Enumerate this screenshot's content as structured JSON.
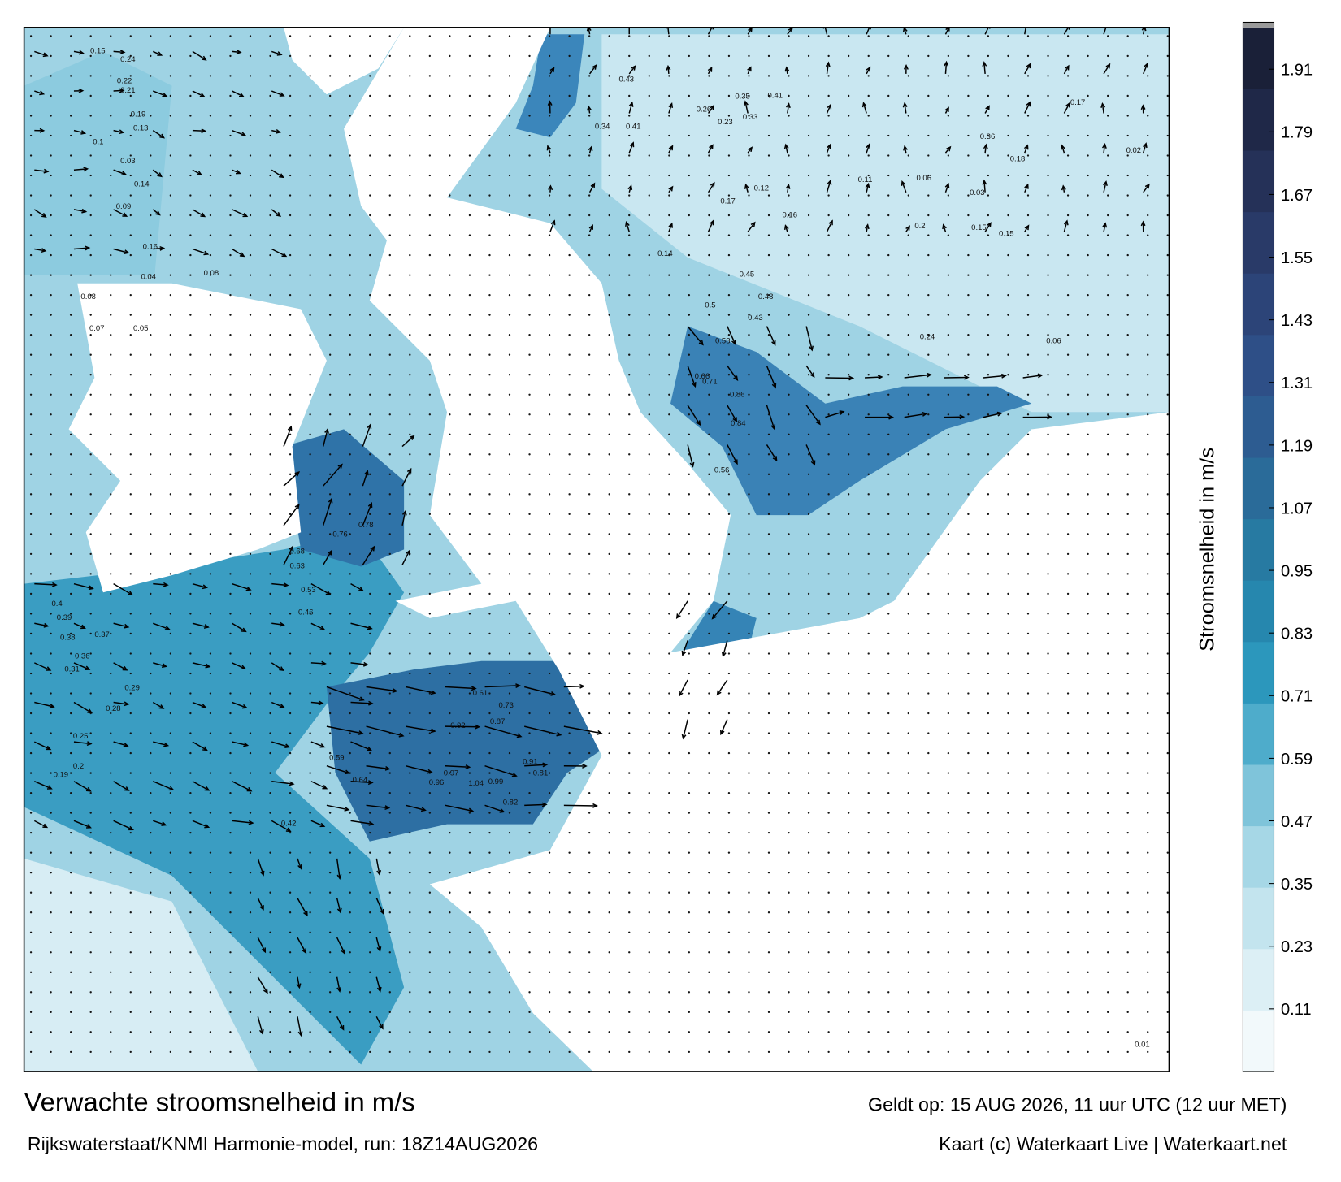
{
  "title": "Verwachte stroomsnelheid in m/s",
  "subtitle": "Rijkswaterstaat/KNMI Harmonie-model, run: 18Z14AUG2026",
  "valid_time": "Geldt op: 15 AUG 2026, 11 uur UTC (12 uur MET)",
  "credit": "Kaart (c) Waterkaart Live | Waterkaart.net",
  "colorbar": {
    "label": "Stroomsnelheid in m/s",
    "clim": [
      -0.01,
      1.99
    ],
    "ticks": [
      0.11,
      0.23,
      0.35,
      0.47,
      0.59,
      0.71,
      0.83,
      0.95,
      1.07,
      1.19,
      1.31,
      1.43,
      1.55,
      1.67,
      1.79,
      1.91
    ],
    "colors": [
      "#f2f9fb",
      "#dceff5",
      "#c3e4ee",
      "#a6d7e6",
      "#7fc4da",
      "#4eaccb",
      "#2c97bc",
      "#2687ae",
      "#277aa2",
      "#2a6b99",
      "#2d5c91",
      "#2e4f87",
      "#2c4478",
      "#293a68",
      "#253158",
      "#1f2848",
      "#1a2038"
    ]
  },
  "map": {
    "labels": [
      "0.15",
      "0.24",
      "0.22",
      "0.21",
      "0.19",
      "0.13",
      "0.1",
      "0.14",
      "0.09",
      "0.16",
      "0.04",
      "0.08",
      "0.07",
      "0.05",
      "0.4",
      "0.39",
      "0.38",
      "0.37",
      "0.36",
      "0.31",
      "0.29",
      "0.28",
      "0.25",
      "0.2",
      "0.19",
      "0.42",
      "0.46",
      "0.53",
      "0.63",
      "0.68",
      "0.76",
      "0.78",
      "0.59",
      "0.64",
      "0.92",
      "0.96",
      "0.97",
      "1.04",
      "0.99",
      "0.91",
      "0.81",
      "0.82",
      "0.73",
      "0.61",
      "0.87",
      "0.86",
      "0.84",
      "0.71",
      "0.66",
      "0.56",
      "0.58",
      "0.5",
      "0.48",
      "0.43",
      "0.45",
      "0.41",
      "0.35",
      "0.33",
      "0.26",
      "0.23",
      "0.17",
      "0.12",
      "0.11",
      "0.06",
      "0.03",
      "0.02",
      "0.01",
      "0.43",
      "0.34",
      "0.41",
      "0.36",
      "0.18",
      "0.2",
      "0.15",
      "0.14",
      "0.16",
      "0.17",
      "0.15",
      "0.24",
      "0.06",
      "0.03",
      "0.08"
    ]
  }
}
